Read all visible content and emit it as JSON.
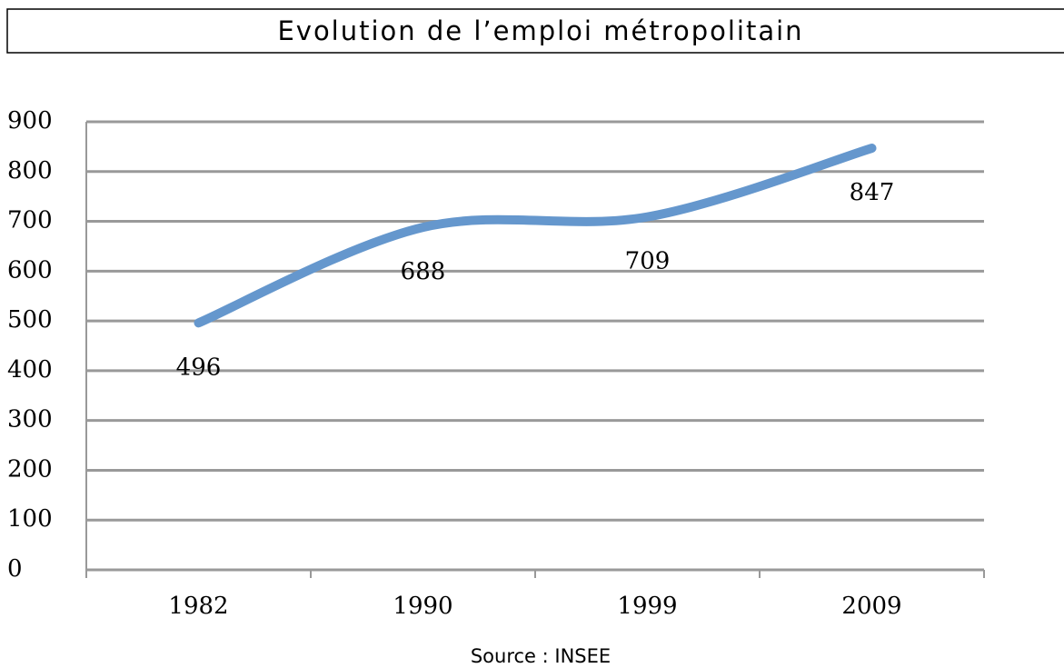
{
  "chart_data": {
    "type": "line",
    "title": "Evolution de l’emploi métropolitain",
    "categories": [
      "1982",
      "1990",
      "1999",
      "2009"
    ],
    "values": [
      496,
      688,
      709,
      847
    ],
    "color": "#6597cd",
    "ylim": [
      0,
      900
    ],
    "yticks": [
      0,
      100,
      200,
      300,
      400,
      500,
      600,
      700,
      800,
      900
    ],
    "grid": true,
    "smooth": true,
    "source": "Source : INSEE"
  }
}
